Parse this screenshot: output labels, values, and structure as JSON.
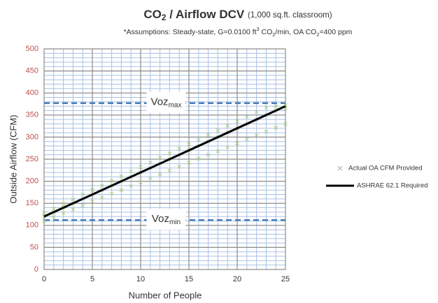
{
  "chart_data": {
    "type": "scatter",
    "title": [
      {
        "text": "CO"
      },
      {
        "text": "2",
        "shift": "sub"
      },
      {
        "text": " / Airflow DCV "
      },
      {
        "text": "(1,000 sq.ft. classroom)",
        "size": "small"
      }
    ],
    "subtitle": [
      {
        "text": "*Assumptions: Steady-state, G=0.0100 ft"
      },
      {
        "text": "3",
        "shift": "super"
      },
      {
        "text": " CO"
      },
      {
        "text": "2",
        "shift": "sub"
      },
      {
        "text": "/min, OA CO"
      },
      {
        "text": "2",
        "shift": "sub"
      },
      {
        "text": "=400 ppm"
      }
    ],
    "xlabel": "Number of People",
    "ylabel": "Outside Airflow (CFM)",
    "xlim": [
      0,
      25
    ],
    "xticks": [
      0,
      5,
      10,
      15,
      20,
      25
    ],
    "ylim": [
      0,
      500
    ],
    "yticks": [
      0,
      50,
      100,
      150,
      200,
      250,
      300,
      350,
      400,
      450,
      500
    ],
    "ytick_color": "#c0504d",
    "grid": true,
    "x_minor_step": 1,
    "y_minor_step": 10,
    "legend": "right",
    "series": [
      {
        "name": "Actual OA CFM Provided",
        "type": "scatter",
        "color": "#a8cc88",
        "x": [
          0,
          1,
          2,
          3,
          4,
          5,
          6,
          7,
          8,
          9,
          10,
          11,
          12,
          13,
          14,
          15,
          16,
          17,
          18,
          19,
          20,
          21,
          22,
          23,
          24,
          25,
          0,
          1,
          2,
          3,
          4,
          5,
          6,
          7,
          8,
          9,
          10,
          11,
          12,
          13,
          14,
          15,
          16,
          17,
          18,
          19,
          20,
          21,
          22,
          23,
          24,
          25,
          0,
          1,
          2,
          3,
          4,
          5,
          6,
          7,
          8,
          9,
          10,
          11,
          12,
          13,
          14,
          15,
          16,
          17,
          18,
          19,
          20,
          21,
          22,
          23,
          24,
          25
        ],
        "y": [
          110,
          119,
          128,
          136,
          145,
          154,
          163,
          172,
          180,
          189,
          198,
          207,
          216,
          224,
          233,
          242,
          251,
          260,
          268,
          277,
          286,
          295,
          304,
          312,
          321,
          330,
          120,
          130,
          140,
          150,
          160,
          170,
          180,
          190,
          200,
          210,
          220,
          230,
          240,
          250,
          260,
          270,
          280,
          290,
          300,
          310,
          320,
          330,
          340,
          350,
          360,
          365,
          128,
          138,
          149,
          159,
          170,
          180,
          190,
          201,
          211,
          222,
          232,
          242,
          253,
          263,
          274,
          284,
          294,
          305,
          315,
          326,
          336,
          346,
          357,
          367,
          370,
          372
        ]
      },
      {
        "name": "ASHRAE 62.1 Required",
        "type": "line",
        "color": "#000000",
        "x": [
          0,
          25
        ],
        "y": [
          120,
          370
        ]
      }
    ],
    "reference_lines": [
      {
        "value": 377,
        "label": "Voz",
        "sub": "max",
        "color": "#4a7ebb"
      },
      {
        "value": 112,
        "label": "Voz",
        "sub": "min",
        "color": "#4a7ebb"
      }
    ]
  }
}
